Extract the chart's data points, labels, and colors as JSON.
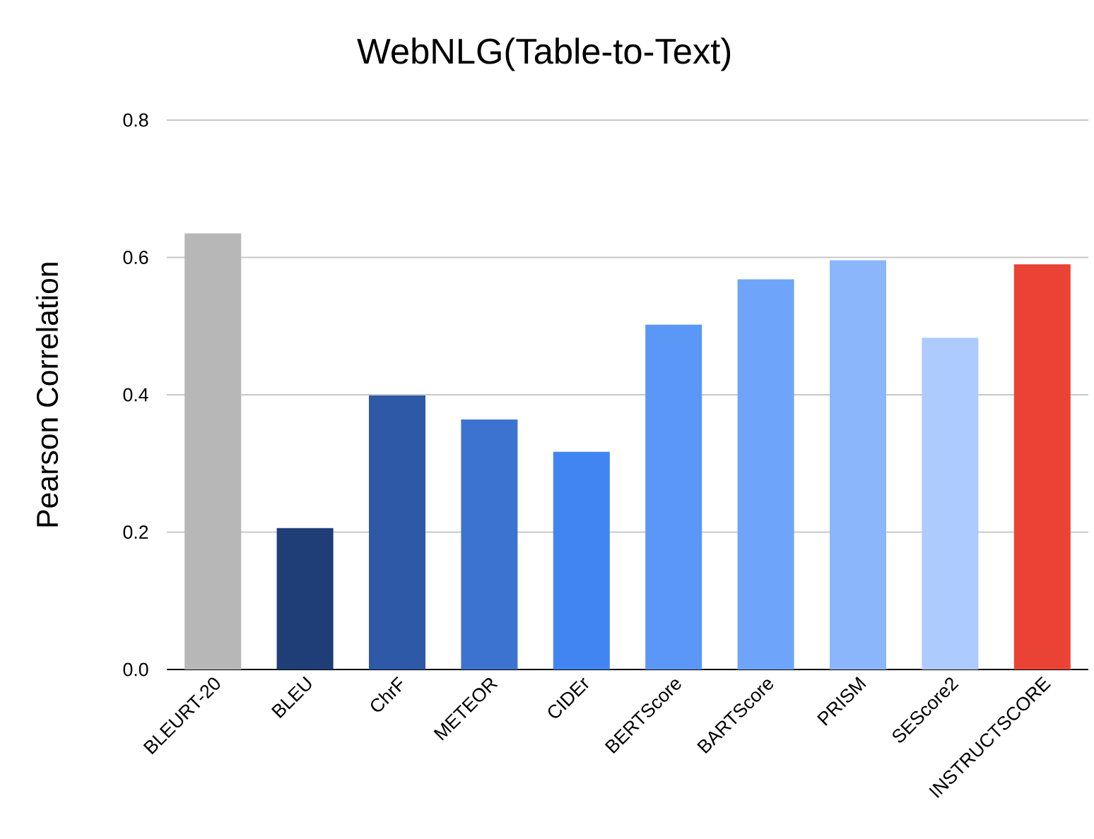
{
  "chart_data": {
    "type": "bar",
    "title": "WebNLG(Table-to-Text)",
    "ylabel": "Pearson Correlation",
    "categories": [
      "BLEURT-20",
      "BLEU",
      "ChrF",
      "METEOR",
      "CIDEr",
      "BERTScore",
      "BARTScore",
      "PRISM",
      "SEScore2",
      "INSTRUCTSCORE"
    ],
    "values": [
      0.635,
      0.206,
      0.399,
      0.364,
      0.317,
      0.502,
      0.568,
      0.596,
      0.483,
      0.59
    ],
    "colors": [
      "#b7b7b7",
      "#1f3e77",
      "#2d59a7",
      "#3c73d0",
      "#4185f2",
      "#5b97f6",
      "#6ea5fa",
      "#8cb6fb",
      "#adcbfe",
      "#ea4335"
    ],
    "ylim": [
      0,
      0.8
    ],
    "yticks": [
      {
        "value": 0,
        "label": "0.0"
      },
      {
        "value": 0.2,
        "label": "0.2"
      },
      {
        "value": 0.4,
        "label": "0.4"
      },
      {
        "value": 0.6,
        "label": "0.6"
      },
      {
        "value": 0.8,
        "label": "0.8"
      }
    ],
    "grid": "y"
  }
}
